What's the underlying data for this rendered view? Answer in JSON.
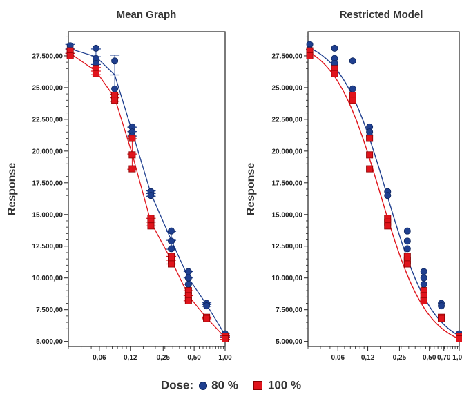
{
  "legend": {
    "prefix": "Dose:",
    "s1": "80 %",
    "s2": "100 %",
    "s1_color": "#1f3f8f",
    "s2_color": "#e0141c"
  },
  "chart_data": [
    {
      "type": "scatter",
      "title": "Mean Graph",
      "ylabel": "Response",
      "xlabel": "",
      "x_scale": "log",
      "x_ticks": [
        "0,06",
        "0,12",
        "0,25",
        "0,50",
        "1,00"
      ],
      "y_ticks": [
        "5.000,00",
        "7.500,00",
        "10.000,00",
        "12.500,00",
        "15.000,00",
        "17.500,00",
        "20.000,00",
        "22.500,00",
        "25.000,00",
        "27.500,00"
      ],
      "ylim": [
        4600,
        29400
      ],
      "grid": false,
      "series": [
        {
          "color": "#1f3f8f",
          "marker": "circle",
          "error_bars": true,
          "line": "mean",
          "points": [
            [
              0.03125,
              28300
            ],
            [
              0.03125,
              27800
            ],
            [
              0.0556,
              28100
            ],
            [
              0.0556,
              27300
            ],
            [
              0.0556,
              26900
            ],
            [
              0.0846,
              27100
            ],
            [
              0.0846,
              24900
            ],
            [
              0.125,
              21900
            ],
            [
              0.125,
              21500
            ],
            [
              0.125,
              21200
            ],
            [
              0.19,
              16800
            ],
            [
              0.19,
              16500
            ],
            [
              0.3,
              13700
            ],
            [
              0.3,
              12900
            ],
            [
              0.3,
              12300
            ],
            [
              0.44,
              10500
            ],
            [
              0.44,
              10000
            ],
            [
              0.44,
              9500
            ],
            [
              0.66,
              8000
            ],
            [
              0.66,
              7800
            ],
            [
              1.0,
              5600
            ],
            [
              1.0,
              5400
            ]
          ]
        },
        {
          "color": "#e0141c",
          "marker": "square",
          "error_bars": true,
          "line": "mean",
          "points": [
            [
              0.03125,
              27900
            ],
            [
              0.03125,
              27500
            ],
            [
              0.0556,
              26500
            ],
            [
              0.0556,
              26100
            ],
            [
              0.0846,
              24400
            ],
            [
              0.0846,
              24000
            ],
            [
              0.125,
              21000
            ],
            [
              0.125,
              19700
            ],
            [
              0.125,
              18600
            ],
            [
              0.19,
              14700
            ],
            [
              0.19,
              14400
            ],
            [
              0.19,
              14100
            ],
            [
              0.3,
              11700
            ],
            [
              0.3,
              11400
            ],
            [
              0.3,
              11100
            ],
            [
              0.44,
              9000
            ],
            [
              0.44,
              8600
            ],
            [
              0.44,
              8200
            ],
            [
              0.66,
              6900
            ],
            [
              0.66,
              6800
            ],
            [
              1.0,
              5400
            ],
            [
              1.0,
              5200
            ]
          ]
        }
      ]
    },
    {
      "type": "scatter",
      "title": "Restricted Model",
      "ylabel": "Response",
      "xlabel": "",
      "x_scale": "log",
      "x_ticks": [
        "0,06",
        "0,12",
        "0,25",
        "0,50",
        "0,70",
        "1,00"
      ],
      "y_ticks": [
        "5.000,00",
        "7.500,00",
        "10.000,00",
        "12.500,00",
        "15.000,00",
        "17.500,00",
        "20.000,00",
        "22.500,00",
        "25.000,00",
        "27.500,00"
      ],
      "ylim": [
        4600,
        29400
      ],
      "grid": false,
      "series": [
        {
          "color": "#1f3f8f",
          "marker": "circle",
          "error_bars": false,
          "line": "fit",
          "fit": {
            "top": 29000,
            "bottom": 4400,
            "ec50": 0.185,
            "hill": 1.85
          },
          "points": [
            [
              0.03125,
              28400
            ],
            [
              0.03125,
              28000
            ],
            [
              0.0556,
              28100
            ],
            [
              0.0556,
              27300
            ],
            [
              0.0556,
              26900
            ],
            [
              0.0846,
              27100
            ],
            [
              0.0846,
              24900
            ],
            [
              0.125,
              21900
            ],
            [
              0.125,
              21500
            ],
            [
              0.125,
              21200
            ],
            [
              0.19,
              16800
            ],
            [
              0.19,
              16500
            ],
            [
              0.3,
              13700
            ],
            [
              0.3,
              12900
            ],
            [
              0.3,
              12300
            ],
            [
              0.44,
              10500
            ],
            [
              0.44,
              10000
            ],
            [
              0.44,
              9500
            ],
            [
              0.66,
              8000
            ],
            [
              0.66,
              7800
            ],
            [
              1.0,
              5600
            ],
            [
              1.0,
              5400
            ]
          ]
        },
        {
          "color": "#e0141c",
          "marker": "square",
          "error_bars": false,
          "line": "fit",
          "fit": {
            "top": 28900,
            "bottom": 4400,
            "ec50": 0.16,
            "hill": 1.85
          },
          "points": [
            [
              0.03125,
              27900
            ],
            [
              0.03125,
              27500
            ],
            [
              0.0556,
              26500
            ],
            [
              0.0556,
              26100
            ],
            [
              0.0846,
              24400
            ],
            [
              0.0846,
              24000
            ],
            [
              0.125,
              21000
            ],
            [
              0.125,
              19700
            ],
            [
              0.125,
              18600
            ],
            [
              0.19,
              14700
            ],
            [
              0.19,
              14400
            ],
            [
              0.19,
              14100
            ],
            [
              0.3,
              11700
            ],
            [
              0.3,
              11400
            ],
            [
              0.3,
              11100
            ],
            [
              0.44,
              9000
            ],
            [
              0.44,
              8600
            ],
            [
              0.44,
              8200
            ],
            [
              0.66,
              6900
            ],
            [
              0.66,
              6800
            ],
            [
              1.0,
              5400
            ],
            [
              1.0,
              5200
            ]
          ]
        }
      ]
    }
  ]
}
